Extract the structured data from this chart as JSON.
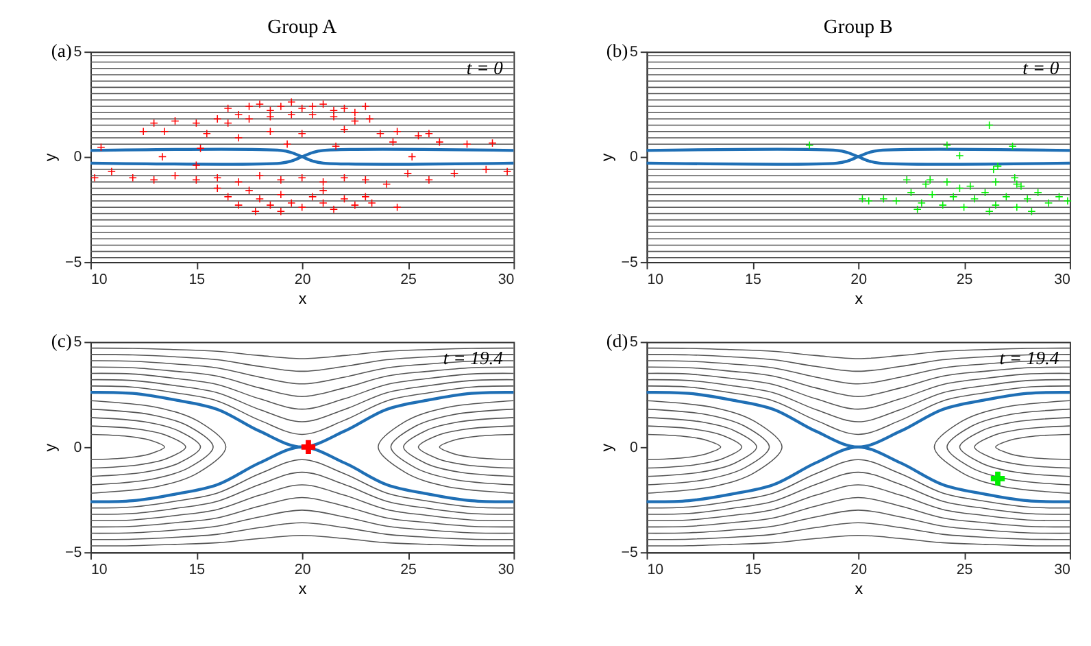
{
  "chart_data": [
    {
      "type": "line",
      "title": "Group A",
      "xlabel": "x",
      "ylabel": "y",
      "xlim": [
        10,
        30
      ],
      "ylim": [
        -5,
        5
      ],
      "xticks": [
        10,
        15,
        20,
        25,
        30
      ],
      "yticks": [
        -5,
        0,
        5
      ],
      "grid": false,
      "annotations": [
        "(a)",
        "t = 0"
      ],
      "x": [
        10,
        30
      ],
      "series": [
        {
          "color": "#555555",
          "values": [
            4.8,
            4.8
          ]
        },
        {
          "color": "#555555",
          "values": [
            4.5,
            4.5
          ]
        },
        {
          "color": "#555555",
          "values": [
            4.2,
            4.2
          ]
        },
        {
          "color": "#555555",
          "values": [
            3.9,
            3.9
          ]
        },
        {
          "color": "#555555",
          "values": [
            3.6,
            3.6
          ]
        },
        {
          "color": "#555555",
          "values": [
            3.3,
            3.3
          ]
        },
        {
          "color": "#555555",
          "values": [
            3.0,
            3.0
          ]
        },
        {
          "color": "#555555",
          "values": [
            2.7,
            2.7
          ]
        },
        {
          "color": "#555555",
          "values": [
            2.4,
            2.4
          ]
        },
        {
          "color": "#555555",
          "values": [
            2.1,
            2.1
          ]
        },
        {
          "color": "#555555",
          "values": [
            1.8,
            1.8
          ]
        },
        {
          "color": "#555555",
          "values": [
            1.5,
            1.5
          ]
        },
        {
          "color": "#555555",
          "values": [
            1.2,
            1.2
          ]
        },
        {
          "color": "#555555",
          "values": [
            0.9,
            0.9
          ]
        },
        {
          "color": "#555555",
          "values": [
            0.6,
            0.6
          ]
        },
        {
          "color": "#555555",
          "values": [
            -0.6,
            -0.6
          ]
        },
        {
          "color": "#555555",
          "values": [
            -0.9,
            -0.9
          ]
        },
        {
          "color": "#555555",
          "values": [
            -1.2,
            -1.2
          ]
        },
        {
          "color": "#555555",
          "values": [
            -1.5,
            -1.5
          ]
        },
        {
          "color": "#555555",
          "values": [
            -1.8,
            -1.8
          ]
        },
        {
          "color": "#555555",
          "values": [
            -2.1,
            -2.1
          ]
        },
        {
          "color": "#555555",
          "values": [
            -2.4,
            -2.4
          ]
        },
        {
          "color": "#555555",
          "values": [
            -2.7,
            -2.7
          ]
        },
        {
          "color": "#555555",
          "values": [
            -3.0,
            -3.0
          ]
        },
        {
          "color": "#555555",
          "values": [
            -3.3,
            -3.3
          ]
        },
        {
          "color": "#555555",
          "values": [
            -3.6,
            -3.6
          ]
        },
        {
          "color": "#555555",
          "values": [
            -3.9,
            -3.9
          ]
        },
        {
          "color": "#555555",
          "values": [
            -4.2,
            -4.2
          ]
        },
        {
          "color": "#555555",
          "values": [
            -4.5,
            -4.5
          ]
        },
        {
          "color": "#555555",
          "values": [
            -4.8,
            -4.8
          ]
        },
        {
          "color": "#1f6fb5",
          "x": [
            10,
            19,
            19.5,
            20,
            20.5,
            21,
            30
          ],
          "values": [
            0.3,
            0.3,
            0.2,
            0,
            -0.2,
            -0.3,
            -0.3
          ]
        },
        {
          "color": "#1f6fb5",
          "x": [
            10,
            19,
            19.5,
            20,
            20.5,
            21,
            30
          ],
          "values": [
            -0.3,
            -0.3,
            -0.2,
            0,
            0.2,
            0.3,
            0.3
          ]
        },
        {
          "type": "scatter",
          "marker": "cross",
          "color": "#ff0000",
          "x": [
            16.5,
            17,
            17.5,
            18,
            18.5,
            19,
            19.5,
            20,
            20.5,
            21,
            21.5,
            22,
            22.5,
            23,
            16,
            16.5,
            17.5,
            18.5,
            19.5,
            20.5,
            21.5,
            22.5,
            23.2,
            15,
            14,
            13,
            12.5,
            13.5,
            15.5,
            17,
            18.5,
            20,
            22,
            23.7,
            24.5,
            25.5,
            26,
            24.3,
            26.5,
            27.8,
            29,
            10.5,
            15.2,
            19.3,
            21.6,
            13.4,
            25.2,
            10.2,
            11,
            12,
            13,
            14,
            15,
            16,
            17,
            18,
            19,
            20,
            21,
            22,
            23,
            24,
            25,
            26,
            27.2,
            28.7,
            29.7,
            15,
            17.5,
            18,
            18.5,
            19,
            19.5,
            20,
            20.5,
            21,
            21.5,
            22,
            22.5,
            23,
            23.3,
            17,
            16.5,
            17.8,
            19,
            21,
            24.5,
            16
          ],
          "values": [
            2.3,
            2.0,
            2.4,
            2.5,
            2.2,
            2.4,
            2.6,
            2.3,
            2.4,
            2.5,
            2.2,
            2.3,
            2.1,
            2.4,
            1.8,
            1.6,
            1.8,
            1.9,
            2.0,
            2.0,
            1.9,
            1.7,
            1.8,
            1.6,
            1.7,
            1.6,
            1.2,
            1.2,
            1.1,
            0.9,
            1.2,
            1.1,
            1.3,
            1.1,
            1.2,
            1.0,
            1.1,
            0.7,
            0.7,
            0.6,
            0.65,
            0.45,
            0.4,
            0.6,
            0.5,
            0,
            0,
            -1.0,
            -0.7,
            -1.0,
            -1.1,
            -0.9,
            -1.1,
            -1.0,
            -1.2,
            -0.9,
            -1.1,
            -1.0,
            -1.2,
            -1.0,
            -1.1,
            -1.3,
            -0.8,
            -1.1,
            -0.8,
            -0.6,
            -0.7,
            -0.4,
            -1.6,
            -2.0,
            -2.3,
            -1.8,
            -2.2,
            -2.4,
            -1.9,
            -2.2,
            -2.5,
            -2.0,
            -2.3,
            -1.9,
            -2.2,
            -2.3,
            -1.9,
            -2.6,
            -2.6,
            -1.6,
            -2.4,
            -1.5
          ]
        }
      ]
    },
    {
      "type": "line",
      "title": "Group B",
      "xlabel": "x",
      "ylabel": "y",
      "xlim": [
        10,
        30
      ],
      "ylim": [
        -5,
        5
      ],
      "xticks": [
        10,
        15,
        20,
        25,
        30
      ],
      "yticks": [
        -5,
        0,
        5
      ],
      "grid": false,
      "annotations": [
        "(b)",
        "t = 0"
      ],
      "x": [
        10,
        30
      ],
      "series": [
        {
          "color": "#555555",
          "values": [
            4.8,
            4.8
          ]
        },
        {
          "color": "#555555",
          "values": [
            4.5,
            4.5
          ]
        },
        {
          "color": "#555555",
          "values": [
            4.2,
            4.2
          ]
        },
        {
          "color": "#555555",
          "values": [
            3.9,
            3.9
          ]
        },
        {
          "color": "#555555",
          "values": [
            3.6,
            3.6
          ]
        },
        {
          "color": "#555555",
          "values": [
            3.3,
            3.3
          ]
        },
        {
          "color": "#555555",
          "values": [
            3.0,
            3.0
          ]
        },
        {
          "color": "#555555",
          "values": [
            2.7,
            2.7
          ]
        },
        {
          "color": "#555555",
          "values": [
            2.4,
            2.4
          ]
        },
        {
          "color": "#555555",
          "values": [
            2.1,
            2.1
          ]
        },
        {
          "color": "#555555",
          "values": [
            1.8,
            1.8
          ]
        },
        {
          "color": "#555555",
          "values": [
            1.5,
            1.5
          ]
        },
        {
          "color": "#555555",
          "values": [
            1.2,
            1.2
          ]
        },
        {
          "color": "#555555",
          "values": [
            0.9,
            0.9
          ]
        },
        {
          "color": "#555555",
          "values": [
            0.6,
            0.6
          ]
        },
        {
          "color": "#555555",
          "values": [
            -0.6,
            -0.6
          ]
        },
        {
          "color": "#555555",
          "values": [
            -0.9,
            -0.9
          ]
        },
        {
          "color": "#555555",
          "values": [
            -1.2,
            -1.2
          ]
        },
        {
          "color": "#555555",
          "values": [
            -1.5,
            -1.5
          ]
        },
        {
          "color": "#555555",
          "values": [
            -1.8,
            -1.8
          ]
        },
        {
          "color": "#555555",
          "values": [
            -2.1,
            -2.1
          ]
        },
        {
          "color": "#555555",
          "values": [
            -2.4,
            -2.4
          ]
        },
        {
          "color": "#555555",
          "values": [
            -2.7,
            -2.7
          ]
        },
        {
          "color": "#555555",
          "values": [
            -3.0,
            -3.0
          ]
        },
        {
          "color": "#555555",
          "values": [
            -3.3,
            -3.3
          ]
        },
        {
          "color": "#555555",
          "values": [
            -3.6,
            -3.6
          ]
        },
        {
          "color": "#555555",
          "values": [
            -3.9,
            -3.9
          ]
        },
        {
          "color": "#555555",
          "values": [
            -4.2,
            -4.2
          ]
        },
        {
          "color": "#555555",
          "values": [
            -4.5,
            -4.5
          ]
        },
        {
          "color": "#555555",
          "values": [
            -4.8,
            -4.8
          ]
        },
        {
          "color": "#1f6fb5",
          "x": [
            10,
            19,
            19.5,
            20,
            20.5,
            21,
            30
          ],
          "values": [
            0.3,
            0.3,
            0.2,
            0,
            -0.2,
            -0.3,
            -0.3
          ]
        },
        {
          "color": "#1f6fb5",
          "x": [
            10,
            19,
            19.5,
            20,
            20.5,
            21,
            30
          ],
          "values": [
            -0.3,
            -0.3,
            -0.2,
            0,
            0.2,
            0.3,
            0.3
          ]
        },
        {
          "type": "scatter",
          "marker": "cross",
          "color": "#00ee00",
          "x": [
            21.2,
            21.8,
            22.5,
            23,
            23.5,
            24,
            24.5,
            25,
            25.5,
            26,
            26.5,
            27,
            27.5,
            28,
            28.5,
            29,
            29.5,
            29.9,
            22.8,
            24.8,
            26.2,
            28.2,
            25.3,
            26.5,
            27.5,
            23.2,
            26.6,
            27.4,
            27.7,
            20.2,
            20.5,
            22.3,
            23.4,
            24.2,
            17.7,
            24.2,
            26.2,
            27.3,
            24.8,
            26.4
          ],
          "values": [
            -2.0,
            -2.1,
            -1.7,
            -2.2,
            -1.8,
            -2.3,
            -1.9,
            -2.4,
            -2.0,
            -1.7,
            -2.3,
            -1.9,
            -2.4,
            -2.0,
            -1.7,
            -2.2,
            -1.9,
            -2.1,
            -2.5,
            -1.5,
            -2.6,
            -2.6,
            -1.4,
            -1.2,
            -1.3,
            -1.3,
            -0.45,
            -1.0,
            -1.4,
            -2.0,
            -2.1,
            -1.1,
            -1.1,
            -1.2,
            0.55,
            0.55,
            1.5,
            0.5,
            0.05,
            -0.6
          ]
        }
      ]
    },
    {
      "type": "line",
      "xlabel": "x",
      "ylabel": "y",
      "xlim": [
        10,
        30
      ],
      "ylim": [
        -5,
        5
      ],
      "xticks": [
        10,
        15,
        20,
        25,
        30
      ],
      "yticks": [
        -5,
        0,
        5
      ],
      "grid": false,
      "annotations": [
        "(c)",
        "t = 19.4"
      ],
      "x": [
        10,
        12,
        14,
        16,
        18,
        20,
        22,
        24,
        26,
        28,
        30
      ],
      "series": [
        {
          "color": "#555555",
          "values": [
            2.9,
            2.85,
            2.58,
            2.19,
            1.27,
            0.6,
            1.27,
            2.19,
            2.58,
            2.85,
            2.9
          ]
        },
        {
          "color": "#555555",
          "values": [
            3.2,
            3.16,
            2.92,
            2.58,
            1.78,
            1.2,
            1.78,
            2.58,
            2.92,
            3.16,
            3.2
          ]
        },
        {
          "color": "#555555",
          "values": [
            3.5,
            3.47,
            3.26,
            2.97,
            2.29,
            1.8,
            2.29,
            2.97,
            3.26,
            3.47,
            3.5
          ]
        },
        {
          "color": "#555555",
          "values": [
            3.8,
            3.77,
            3.6,
            3.37,
            2.81,
            2.4,
            2.81,
            3.37,
            3.6,
            3.77,
            3.8
          ]
        },
        {
          "color": "#555555",
          "values": [
            4.1,
            4.08,
            3.95,
            3.76,
            3.32,
            3.0,
            3.32,
            3.76,
            3.95,
            4.08,
            4.1
          ]
        },
        {
          "color": "#555555",
          "values": [
            4.4,
            4.38,
            4.29,
            4.15,
            3.83,
            3.6,
            3.83,
            4.15,
            4.29,
            4.38,
            4.4
          ]
        },
        {
          "color": "#555555",
          "values": [
            4.7,
            4.69,
            4.63,
            4.55,
            4.35,
            4.2,
            4.35,
            4.55,
            4.63,
            4.69,
            4.7
          ]
        },
        {
          "color": "#555555",
          "values": [
            -2.9,
            -2.85,
            -2.58,
            -2.19,
            -1.27,
            -0.6,
            -1.27,
            -2.19,
            -2.58,
            -2.85,
            -2.9
          ]
        },
        {
          "color": "#555555",
          "values": [
            -3.2,
            -3.16,
            -2.92,
            -2.58,
            -1.78,
            -1.2,
            -1.78,
            -2.58,
            -2.92,
            -3.16,
            -3.2
          ]
        },
        {
          "color": "#555555",
          "values": [
            -3.5,
            -3.47,
            -3.26,
            -2.97,
            -2.29,
            -1.8,
            -2.29,
            -2.97,
            -3.26,
            -3.47,
            -3.5
          ]
        },
        {
          "color": "#555555",
          "values": [
            -3.8,
            -3.77,
            -3.6,
            -3.37,
            -2.81,
            -2.4,
            -2.81,
            -3.37,
            -3.6,
            -3.77,
            -3.8
          ]
        },
        {
          "color": "#555555",
          "values": [
            -4.1,
            -4.08,
            -3.95,
            -3.76,
            -3.32,
            -3.0,
            -3.32,
            -3.76,
            -3.95,
            -4.08,
            -4.1
          ]
        },
        {
          "color": "#555555",
          "values": [
            -4.4,
            -4.38,
            -4.29,
            -4.15,
            -3.83,
            -3.6,
            -3.83,
            -4.15,
            -4.29,
            -4.38,
            -4.4
          ]
        },
        {
          "color": "#555555",
          "values": [
            -4.7,
            -4.69,
            -4.63,
            -4.55,
            -4.35,
            -4.2,
            -4.35,
            -4.55,
            -4.63,
            -4.69,
            -4.7
          ]
        },
        {
          "color": "#555555",
          "x": [
            10,
            11.75,
            12.8,
            13.5,
            12.8,
            11.75,
            10
          ],
          "values": [
            0.6,
            0.51,
            0.33,
            0,
            -0.33,
            -0.51,
            -0.6
          ]
        },
        {
          "color": "#555555",
          "x": [
            10,
            12.25,
            13.6,
            14.5,
            13.6,
            12.25,
            10
          ],
          "values": [
            1,
            0.85,
            0.55,
            0,
            -0.55,
            -0.85,
            -1
          ]
        },
        {
          "color": "#555555",
          "x": [
            10,
            12.6,
            14.16,
            15.2,
            14.16,
            12.6,
            10
          ],
          "values": [
            1.4,
            1.19,
            0.77,
            0,
            -0.77,
            -1.19,
            -1.4
          ]
        },
        {
          "color": "#555555",
          "x": [
            10,
            12.9,
            14.64,
            15.8,
            14.64,
            12.9,
            10
          ],
          "values": [
            1.8,
            1.53,
            0.99,
            0,
            -0.99,
            -1.53,
            -1.8
          ]
        },
        {
          "color": "#555555",
          "x": [
            10,
            13.2,
            15.12,
            16.4,
            15.12,
            13.2,
            10
          ],
          "values": [
            2.2,
            1.87,
            1.21,
            0,
            -1.21,
            -1.87,
            -2.2
          ]
        },
        {
          "color": "#555555",
          "x": [
            30,
            28.25,
            27.2,
            26.5,
            27.2,
            28.25,
            30
          ],
          "values": [
            0.6,
            0.51,
            0.33,
            0,
            -0.33,
            -0.51,
            -0.6
          ]
        },
        {
          "color": "#555555",
          "x": [
            30,
            27.75,
            26.4,
            25.5,
            26.4,
            27.75,
            30
          ],
          "values": [
            1,
            0.85,
            0.55,
            0,
            -0.55,
            -0.85,
            -1
          ]
        },
        {
          "color": "#555555",
          "x": [
            30,
            27.4,
            25.84,
            24.8,
            25.84,
            27.4,
            30
          ],
          "values": [
            1.4,
            1.19,
            0.77,
            0,
            -0.77,
            -1.19,
            -1.4
          ]
        },
        {
          "color": "#555555",
          "x": [
            30,
            27.1,
            25.36,
            24.2,
            25.36,
            27.1,
            30
          ],
          "values": [
            1.8,
            1.53,
            0.99,
            0,
            -0.99,
            -1.53,
            -1.8
          ]
        },
        {
          "color": "#555555",
          "x": [
            30,
            26.8,
            24.88,
            23.6,
            24.88,
            26.8,
            30
          ],
          "values": [
            2.2,
            1.87,
            1.21,
            0,
            -1.21,
            -1.87,
            -2.2
          ]
        },
        {
          "color": "#1f6fb5",
          "values": [
            2.6,
            2.55,
            2.24,
            1.79,
            0.75,
            0,
            0.75,
            1.79,
            2.24,
            2.55,
            2.6
          ]
        },
        {
          "color": "#1f6fb5",
          "values": [
            -2.6,
            -2.55,
            -2.24,
            -1.79,
            -0.75,
            0,
            -0.75,
            -1.79,
            -2.24,
            -2.55,
            -2.6
          ]
        },
        {
          "type": "scatter",
          "marker": "cross",
          "color": "#ff0000",
          "x": [
            20.3
          ],
          "values": [
            0
          ]
        }
      ]
    },
    {
      "type": "line",
      "xlabel": "x",
      "ylabel": "y",
      "xlim": [
        10,
        30
      ],
      "ylim": [
        -5,
        5
      ],
      "xticks": [
        10,
        15,
        20,
        25,
        30
      ],
      "yticks": [
        -5,
        0,
        5
      ],
      "grid": false,
      "annotations": [
        "(d)",
        "t = 19.4"
      ],
      "x": [
        10,
        12,
        14,
        16,
        18,
        20,
        22,
        24,
        26,
        28,
        30
      ],
      "series": [
        {
          "color": "#555555",
          "values": [
            2.9,
            2.85,
            2.58,
            2.19,
            1.27,
            0.6,
            1.27,
            2.19,
            2.58,
            2.85,
            2.9
          ]
        },
        {
          "color": "#555555",
          "values": [
            3.2,
            3.16,
            2.92,
            2.58,
            1.78,
            1.2,
            1.78,
            2.58,
            2.92,
            3.16,
            3.2
          ]
        },
        {
          "color": "#555555",
          "values": [
            3.5,
            3.47,
            3.26,
            2.97,
            2.29,
            1.8,
            2.29,
            2.97,
            3.26,
            3.47,
            3.5
          ]
        },
        {
          "color": "#555555",
          "values": [
            3.8,
            3.77,
            3.6,
            3.37,
            2.81,
            2.4,
            2.81,
            3.37,
            3.6,
            3.77,
            3.8
          ]
        },
        {
          "color": "#555555",
          "values": [
            4.1,
            4.08,
            3.95,
            3.76,
            3.32,
            3.0,
            3.32,
            3.76,
            3.95,
            4.08,
            4.1
          ]
        },
        {
          "color": "#555555",
          "values": [
            4.4,
            4.38,
            4.29,
            4.15,
            3.83,
            3.6,
            3.83,
            4.15,
            4.29,
            4.38,
            4.4
          ]
        },
        {
          "color": "#555555",
          "values": [
            4.7,
            4.69,
            4.63,
            4.55,
            4.35,
            4.2,
            4.35,
            4.55,
            4.63,
            4.69,
            4.7
          ]
        },
        {
          "color": "#555555",
          "values": [
            -2.9,
            -2.85,
            -2.58,
            -2.19,
            -1.27,
            -0.6,
            -1.27,
            -2.19,
            -2.58,
            -2.85,
            -2.9
          ]
        },
        {
          "color": "#555555",
          "values": [
            -3.2,
            -3.16,
            -2.92,
            -2.58,
            -1.78,
            -1.2,
            -1.78,
            -2.58,
            -2.92,
            -3.16,
            -3.2
          ]
        },
        {
          "color": "#555555",
          "values": [
            -3.5,
            -3.47,
            -3.26,
            -2.97,
            -2.29,
            -1.8,
            -2.29,
            -2.97,
            -3.26,
            -3.47,
            -3.5
          ]
        },
        {
          "color": "#555555",
          "values": [
            -3.8,
            -3.77,
            -3.6,
            -3.37,
            -2.81,
            -2.4,
            -2.81,
            -3.37,
            -3.6,
            -3.77,
            -3.8
          ]
        },
        {
          "color": "#555555",
          "values": [
            -4.1,
            -4.08,
            -3.95,
            -3.76,
            -3.32,
            -3.0,
            -3.32,
            -3.76,
            -3.95,
            -4.08,
            -4.1
          ]
        },
        {
          "color": "#555555",
          "values": [
            -4.4,
            -4.38,
            -4.29,
            -4.15,
            -3.83,
            -3.6,
            -3.83,
            -4.15,
            -4.29,
            -4.38,
            -4.4
          ]
        },
        {
          "color": "#555555",
          "values": [
            -4.7,
            -4.69,
            -4.63,
            -4.55,
            -4.35,
            -4.2,
            -4.35,
            -4.55,
            -4.63,
            -4.69,
            -4.7
          ]
        },
        {
          "color": "#555555",
          "x": [
            10,
            11.75,
            12.8,
            13.5,
            12.8,
            11.75,
            10
          ],
          "values": [
            0.6,
            0.51,
            0.33,
            0,
            -0.33,
            -0.51,
            -0.6
          ]
        },
        {
          "color": "#555555",
          "x": [
            10,
            12.25,
            13.6,
            14.5,
            13.6,
            12.25,
            10
          ],
          "values": [
            1,
            0.85,
            0.55,
            0,
            -0.55,
            -0.85,
            -1
          ]
        },
        {
          "color": "#555555",
          "x": [
            10,
            12.6,
            14.16,
            15.2,
            14.16,
            12.6,
            10
          ],
          "values": [
            1.4,
            1.19,
            0.77,
            0,
            -0.77,
            -1.19,
            -1.4
          ]
        },
        {
          "color": "#555555",
          "x": [
            10,
            12.9,
            14.64,
            15.8,
            14.64,
            12.9,
            10
          ],
          "values": [
            1.8,
            1.53,
            0.99,
            0,
            -0.99,
            -1.53,
            -1.8
          ]
        },
        {
          "color": "#555555",
          "x": [
            10,
            13.2,
            15.12,
            16.4,
            15.12,
            13.2,
            10
          ],
          "values": [
            2.2,
            1.87,
            1.21,
            0,
            -1.21,
            -1.87,
            -2.2
          ]
        },
        {
          "color": "#555555",
          "x": [
            30,
            28.25,
            27.2,
            26.5,
            27.2,
            28.25,
            30
          ],
          "values": [
            0.6,
            0.51,
            0.33,
            0,
            -0.33,
            -0.51,
            -0.6
          ]
        },
        {
          "color": "#555555",
          "x": [
            30,
            27.75,
            26.4,
            25.5,
            26.4,
            27.75,
            30
          ],
          "values": [
            1,
            0.85,
            0.55,
            0,
            -0.55,
            -0.85,
            -1
          ]
        },
        {
          "color": "#555555",
          "x": [
            30,
            27.4,
            25.84,
            24.8,
            25.84,
            27.4,
            30
          ],
          "values": [
            1.4,
            1.19,
            0.77,
            0,
            -0.77,
            -1.19,
            -1.4
          ]
        },
        {
          "color": "#555555",
          "x": [
            30,
            27.1,
            25.36,
            24.2,
            25.36,
            27.1,
            30
          ],
          "values": [
            1.8,
            1.53,
            0.99,
            0,
            -0.99,
            -1.53,
            -1.8
          ]
        },
        {
          "color": "#555555",
          "x": [
            30,
            26.8,
            24.88,
            23.6,
            24.88,
            26.8,
            30
          ],
          "values": [
            2.2,
            1.87,
            1.21,
            0,
            -1.21,
            -1.87,
            -2.2
          ]
        },
        {
          "color": "#1f6fb5",
          "values": [
            2.6,
            2.55,
            2.24,
            1.79,
            0.75,
            0,
            0.75,
            1.79,
            2.24,
            2.55,
            2.6
          ]
        },
        {
          "color": "#1f6fb5",
          "values": [
            -2.6,
            -2.55,
            -2.24,
            -1.79,
            -0.75,
            0,
            -0.75,
            -1.79,
            -2.24,
            -2.55,
            -2.6
          ]
        },
        {
          "type": "scatter",
          "marker": "cross",
          "color": "#00ee00",
          "x": [
            26.6
          ],
          "values": [
            -1.5
          ]
        }
      ]
    }
  ]
}
